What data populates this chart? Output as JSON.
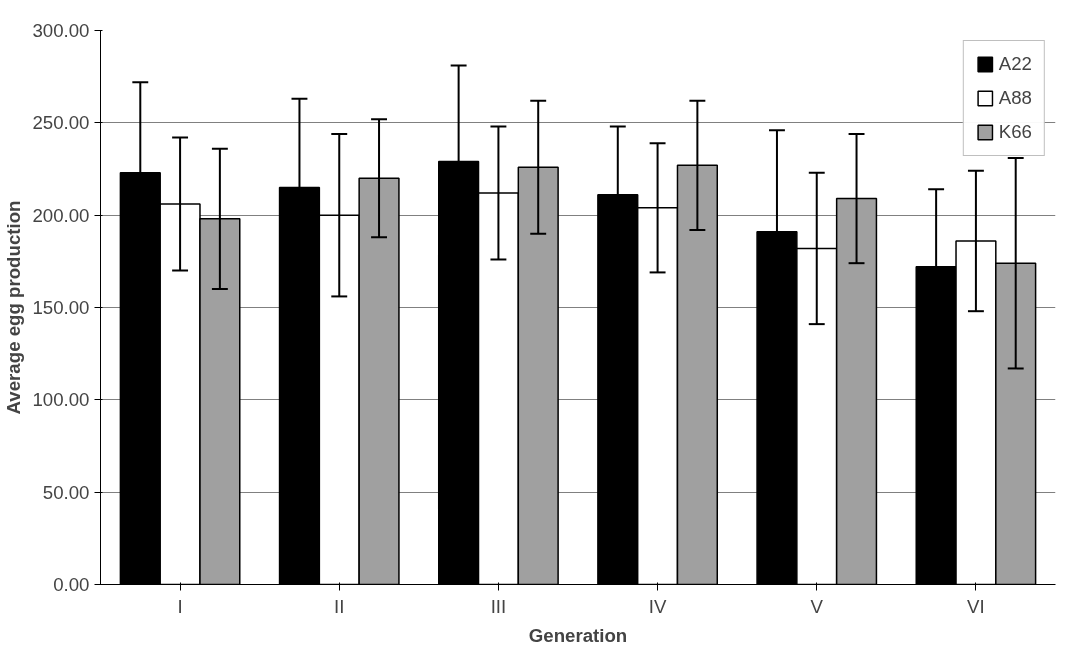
{
  "chart_data": {
    "type": "bar",
    "xlabel": "Generation",
    "ylabel": "Average egg production",
    "categories": [
      "I",
      "II",
      "III",
      "IV",
      "V",
      "VI"
    ],
    "series": [
      {
        "name": "A22",
        "color": "#000000",
        "values": [
          223,
          215,
          229,
          211,
          191,
          172
        ],
        "errors": [
          49,
          48,
          52,
          37,
          55,
          42
        ]
      },
      {
        "name": "A88",
        "color": "#ffffff",
        "values": [
          206,
          200,
          212,
          204,
          182,
          186
        ],
        "errors": [
          36,
          44,
          36,
          35,
          41,
          38
        ]
      },
      {
        "name": "K66",
        "color": "#a0a0a0",
        "values": [
          198,
          220,
          226,
          227,
          209,
          174
        ],
        "errors": [
          38,
          32,
          36,
          35,
          35,
          57
        ]
      }
    ],
    "ylim": [
      0,
      300
    ],
    "yticks": [
      {
        "value": 0,
        "label": "0.00"
      },
      {
        "value": 50,
        "label": "50.00"
      },
      {
        "value": 100,
        "label": "100.00"
      },
      {
        "value": 150,
        "label": "150.00"
      },
      {
        "value": 200,
        "label": "200.00"
      },
      {
        "value": 250,
        "label": "250.00"
      },
      {
        "value": 300,
        "label": "300.00"
      }
    ],
    "grid": "y",
    "legend": "top right"
  }
}
